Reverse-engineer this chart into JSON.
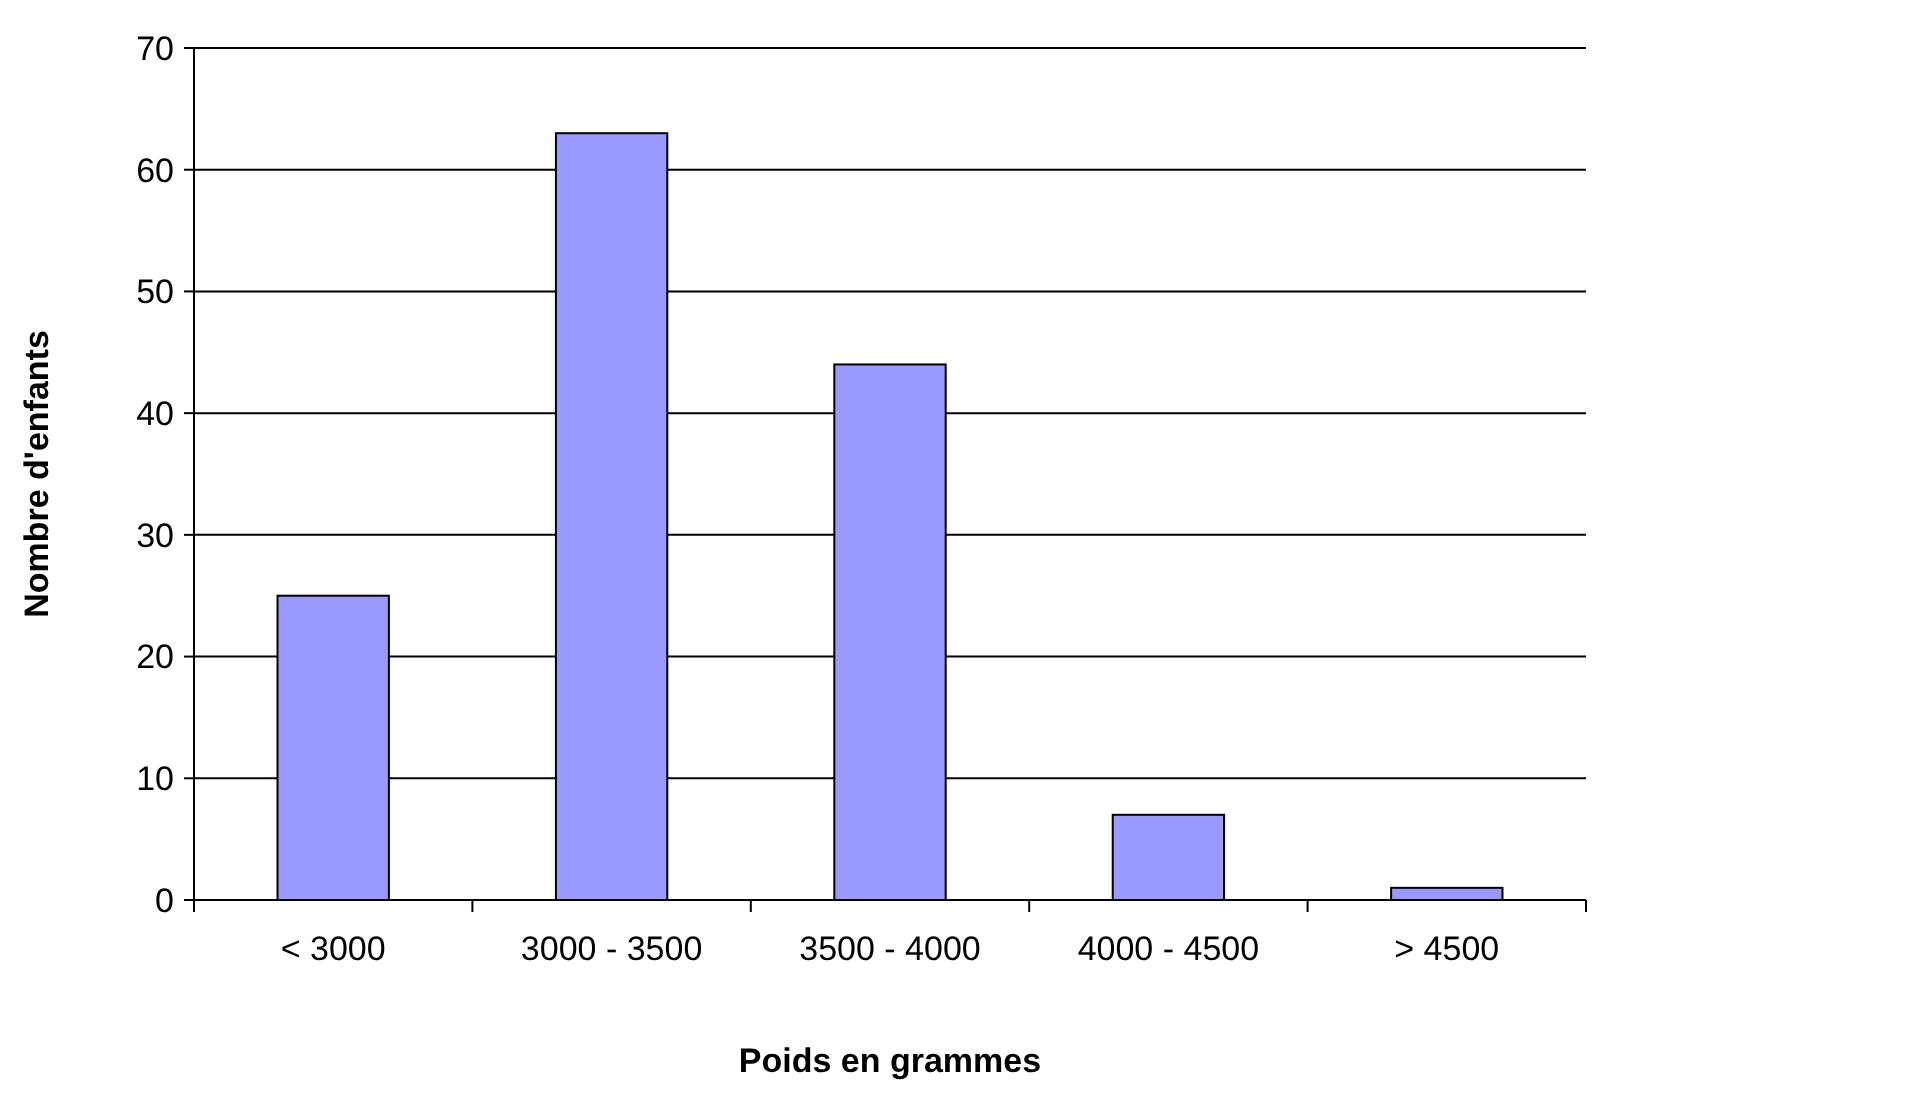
{
  "chart_data": {
    "type": "bar",
    "xlabel": "Poids en grammes",
    "ylabel": "Nombre d'enfants",
    "categories": [
      "< 3000",
      "3000 - 3500",
      "3500 - 4000",
      "4000 - 4500",
      "> 4500"
    ],
    "values": [
      25,
      63,
      44,
      7,
      1
    ],
    "color": "#9999ff",
    "ylim": [
      0,
      70
    ],
    "yticks": [
      0,
      10,
      20,
      30,
      40,
      50,
      60,
      70
    ],
    "grid": "y"
  }
}
